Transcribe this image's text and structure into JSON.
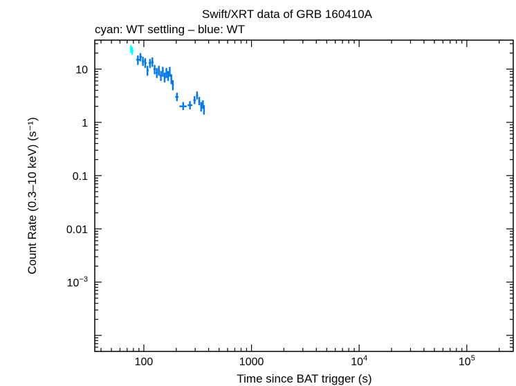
{
  "chart_data": {
    "type": "scatter",
    "title": "Swift/XRT data of GRB 160410A",
    "subtitle": "cyan: WT settling – blue: WT",
    "xlabel": "Time since BAT trigger (s)",
    "ylabel": "Count Rate (0.3–10 keV) (s⁻¹)",
    "x_scale": "log",
    "y_scale": "log",
    "xlim": [
      35,
      270000
    ],
    "ylim": [
      5e-05,
      35
    ],
    "x_ticks": [
      {
        "value": 100,
        "base": "100",
        "exp": ""
      },
      {
        "value": 1000,
        "base": "1000",
        "exp": ""
      },
      {
        "value": 10000,
        "base": "10",
        "exp": "4"
      },
      {
        "value": 100000,
        "base": "10",
        "exp": "5"
      }
    ],
    "y_ticks": [
      {
        "value": 10,
        "base": "10",
        "exp": ""
      },
      {
        "value": 1,
        "base": "1",
        "exp": ""
      },
      {
        "value": 0.1,
        "base": "0.1",
        "exp": ""
      },
      {
        "value": 0.01,
        "base": "0.01",
        "exp": ""
      },
      {
        "value": 0.001,
        "base": "10",
        "exp": "−3"
      }
    ],
    "series": [
      {
        "color": "#00ffff",
        "points": [
          {
            "x": 76,
            "y": 24,
            "xlo": 74,
            "xhi": 78,
            "ylo": 20,
            "yhi": 28
          },
          {
            "x": 78,
            "y": 22,
            "xlo": 76,
            "xhi": 80,
            "ylo": 18.5,
            "yhi": 26
          }
        ]
      },
      {
        "color": "#0077ee",
        "points": [
          {
            "x": 88,
            "y": 15,
            "xlo": 85,
            "xhi": 92,
            "ylo": 12,
            "yhi": 18
          },
          {
            "x": 93,
            "y": 17,
            "xlo": 91,
            "xhi": 96,
            "ylo": 14,
            "yhi": 20
          },
          {
            "x": 98,
            "y": 14,
            "xlo": 96,
            "xhi": 101,
            "ylo": 11.5,
            "yhi": 17
          },
          {
            "x": 103,
            "y": 13,
            "xlo": 101,
            "xhi": 106,
            "ylo": 10.5,
            "yhi": 16
          },
          {
            "x": 108,
            "y": 9.5,
            "xlo": 106,
            "xhi": 111,
            "ylo": 7.5,
            "yhi": 11.5
          },
          {
            "x": 114,
            "y": 13,
            "xlo": 111,
            "xhi": 117,
            "ylo": 10.5,
            "yhi": 15.5
          },
          {
            "x": 120,
            "y": 13.5,
            "xlo": 117,
            "xhi": 123,
            "ylo": 11,
            "yhi": 16.5
          },
          {
            "x": 126,
            "y": 10,
            "xlo": 123,
            "xhi": 129,
            "ylo": 8,
            "yhi": 12
          },
          {
            "x": 132,
            "y": 8.5,
            "xlo": 129,
            "xhi": 135,
            "ylo": 6.8,
            "yhi": 10.5
          },
          {
            "x": 138,
            "y": 9.5,
            "xlo": 135,
            "xhi": 141,
            "ylo": 7.5,
            "yhi": 11.5
          },
          {
            "x": 144,
            "y": 7.5,
            "xlo": 141,
            "xhi": 147,
            "ylo": 6,
            "yhi": 9.2
          },
          {
            "x": 150,
            "y": 9,
            "xlo": 147,
            "xhi": 153,
            "ylo": 7.2,
            "yhi": 11
          },
          {
            "x": 156,
            "y": 7,
            "xlo": 153,
            "xhi": 159,
            "ylo": 5.6,
            "yhi": 8.6
          },
          {
            "x": 162,
            "y": 8.5,
            "xlo": 159,
            "xhi": 165,
            "ylo": 6.8,
            "yhi": 10.5
          },
          {
            "x": 168,
            "y": 7.5,
            "xlo": 165,
            "xhi": 171,
            "ylo": 6,
            "yhi": 9.2
          },
          {
            "x": 174,
            "y": 9,
            "xlo": 171,
            "xhi": 177,
            "ylo": 7.2,
            "yhi": 11
          },
          {
            "x": 180,
            "y": 6.5,
            "xlo": 177,
            "xhi": 183,
            "ylo": 5.2,
            "yhi": 8
          },
          {
            "x": 186,
            "y": 5,
            "xlo": 183,
            "xhi": 190,
            "ylo": 4,
            "yhi": 6.2
          },
          {
            "x": 203,
            "y": 3,
            "xlo": 196,
            "xhi": 210,
            "ylo": 2.5,
            "yhi": 3.6
          },
          {
            "x": 232,
            "y": 2,
            "xlo": 214,
            "xhi": 250,
            "ylo": 1.7,
            "yhi": 2.4
          },
          {
            "x": 268,
            "y": 2.1,
            "xlo": 255,
            "xhi": 282,
            "ylo": 1.75,
            "yhi": 2.5
          },
          {
            "x": 296,
            "y": 2.6,
            "xlo": 288,
            "xhi": 305,
            "ylo": 2.2,
            "yhi": 3.1
          },
          {
            "x": 312,
            "y": 3.2,
            "xlo": 305,
            "xhi": 320,
            "ylo": 2.7,
            "yhi": 3.8
          },
          {
            "x": 327,
            "y": 2.5,
            "xlo": 320,
            "xhi": 334,
            "ylo": 2.1,
            "yhi": 3
          },
          {
            "x": 341,
            "y": 2,
            "xlo": 334,
            "xhi": 348,
            "ylo": 1.6,
            "yhi": 2.4
          },
          {
            "x": 354,
            "y": 2.2,
            "xlo": 348,
            "xhi": 360,
            "ylo": 1.8,
            "yhi": 2.6
          },
          {
            "x": 362,
            "y": 1.7,
            "xlo": 359,
            "xhi": 366,
            "ylo": 1.4,
            "yhi": 2.1
          }
        ]
      }
    ]
  }
}
